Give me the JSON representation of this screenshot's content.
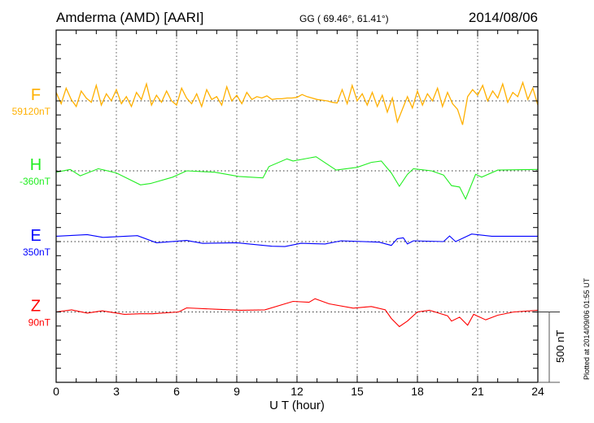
{
  "header": {
    "station": "Amderma (AMD)  [AARI]",
    "coords": "GG ( 69.46°,  61.41°)",
    "date": "2014/08/06"
  },
  "footer": {
    "plotted": "Plotted at 2014/09/06 01:55 UT"
  },
  "chart_data": {
    "type": "line",
    "title": "Amderma (AMD)  [AARI]",
    "xlabel": "U T (hour)",
    "xlim": [
      0,
      24
    ],
    "xticks": [
      "0",
      "3",
      "6",
      "9",
      "12",
      "15",
      "18",
      "21",
      "24"
    ],
    "scale_bar": "500 nT",
    "grid": "dotted vertical every 3 hours; dotted baseline per component",
    "series": [
      {
        "name": "F",
        "baseline_label": "59120nT",
        "color": "#FFB000",
        "step_hours": 0.25,
        "values": [
          60,
          -20,
          90,
          10,
          -40,
          70,
          20,
          -10,
          110,
          -30,
          50,
          0,
          80,
          -20,
          30,
          -40,
          60,
          10,
          120,
          -30,
          40,
          -10,
          70,
          0,
          -30,
          90,
          20,
          -20,
          50,
          -40,
          80,
          10,
          30,
          -30,
          100,
          0,
          40,
          -20,
          60,
          10,
          30,
          20,
          35,
          10,
          15,
          15,
          20,
          20,
          25,
          45,
          30,
          20,
          10,
          5,
          0,
          -10,
          -15,
          80,
          -20,
          110,
          0,
          50,
          -30,
          60,
          -40,
          40,
          -80,
          20,
          -150,
          -60,
          30,
          -50,
          70,
          -30,
          50,
          0,
          90,
          -40,
          60,
          -20,
          -60,
          -170,
          30,
          80,
          40,
          110,
          0,
          70,
          20,
          120,
          -10,
          60,
          30,
          130,
          10,
          90,
          -30
        ]
      },
      {
        "name": "H",
        "baseline_label": "-360nT",
        "color": "#22EE22",
        "x": [
          0,
          0.7,
          1.2,
          2.1,
          3,
          4.2,
          4.7,
          5.8,
          6.5,
          7.9,
          9.1,
          10.3,
          10.6,
          11.5,
          11.8,
          12.95,
          13.95,
          15,
          15.7,
          16.2,
          16.7,
          17.1,
          17.5,
          17.8,
          18.7,
          19.3,
          19.7,
          20.1,
          20.4,
          20.9,
          21.2,
          22,
          24
        ],
        "values": [
          -10,
          10,
          -35,
          15,
          -15,
          -100,
          -90,
          -45,
          0,
          -10,
          -40,
          -50,
          30,
          85,
          70,
          100,
          5,
          25,
          60,
          70,
          -15,
          -110,
          -25,
          15,
          0,
          -30,
          -105,
          -115,
          -200,
          -25,
          -45,
          5,
          10
        ]
      },
      {
        "name": "E",
        "baseline_label": "350nT",
        "color": "#0000FF",
        "x": [
          0,
          1.55,
          2.33,
          4.05,
          5.0,
          6.5,
          7.3,
          9.0,
          10.75,
          11.4,
          12.2,
          13.4,
          14.2,
          16.1,
          16.7,
          17.0,
          17.3,
          17.5,
          17.8,
          19.3,
          19.6,
          19.9,
          20.7,
          21.7,
          24
        ],
        "values": [
          38,
          50,
          30,
          42,
          -8,
          8,
          -13,
          -8,
          -33,
          -35,
          -12,
          -17,
          6,
          -4,
          -27,
          21,
          27,
          -17,
          6,
          0,
          40,
          0,
          54,
          38,
          38
        ]
      },
      {
        "name": "Z",
        "baseline_label": "90nT",
        "color": "#FF0000",
        "x": [
          0,
          0.77,
          1.55,
          2.3,
          3.4,
          4.2,
          4.8,
          6.1,
          6.5,
          8.0,
          9.2,
          10.4,
          11.8,
          12.6,
          12.9,
          13.6,
          14.8,
          15.7,
          16.4,
          16.7,
          17.1,
          17.5,
          18.0,
          18.6,
          19.5,
          19.7,
          20.1,
          20.5,
          20.8,
          21.4,
          22.0,
          22.8,
          24
        ],
        "values": [
          0,
          15,
          -8,
          8,
          -17,
          -13,
          -13,
          0,
          29,
          19,
          12,
          15,
          75,
          69,
          94,
          58,
          27,
          39,
          15,
          -46,
          -104,
          -65,
          0,
          12,
          -27,
          -65,
          -37,
          -94,
          -17,
          -56,
          -23,
          0,
          12
        ]
      }
    ]
  }
}
